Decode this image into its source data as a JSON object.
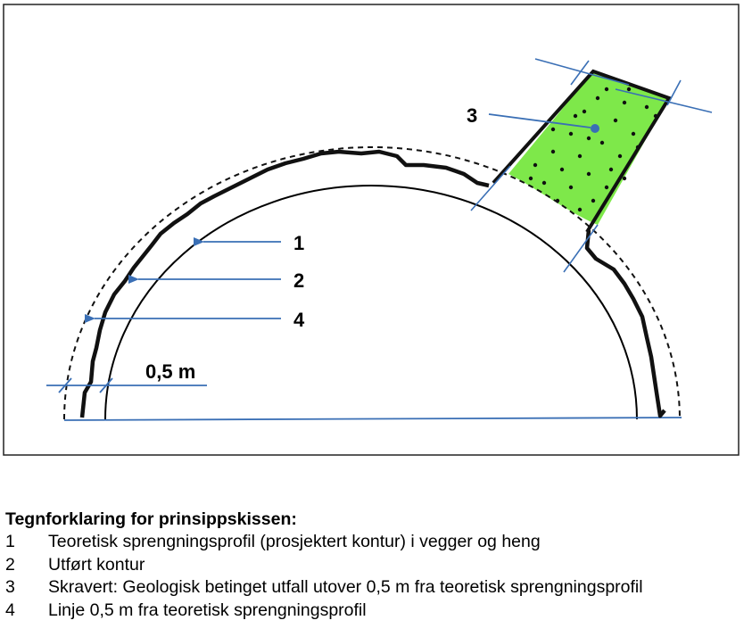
{
  "diagram": {
    "labels": {
      "one": "1",
      "two": "2",
      "three": "3",
      "four": "4",
      "distance": "0,5 m"
    },
    "colors": {
      "theoretical_profile": "#000000",
      "actual_contour": "#111111",
      "offset_line": "#111111",
      "arrows": "#3a6fb5",
      "overbreak_fill": "#7ee84a",
      "dots": "#101010"
    }
  },
  "legend": {
    "title": "Tegnforklaring for prinsippskissen:",
    "items": [
      {
        "number": "1",
        "text": "Teoretisk sprengningsprofil (prosjektert kontur) i vegger og heng"
      },
      {
        "number": "2",
        "text": "Utført kontur"
      },
      {
        "number": "3",
        "text": "Skravert: Geologisk betinget utfall utover 0,5 m fra teoretisk sprengningsprofil"
      },
      {
        "number": "4",
        "text": "Linje 0,5 m fra teoretisk sprengningsprofil"
      }
    ]
  }
}
